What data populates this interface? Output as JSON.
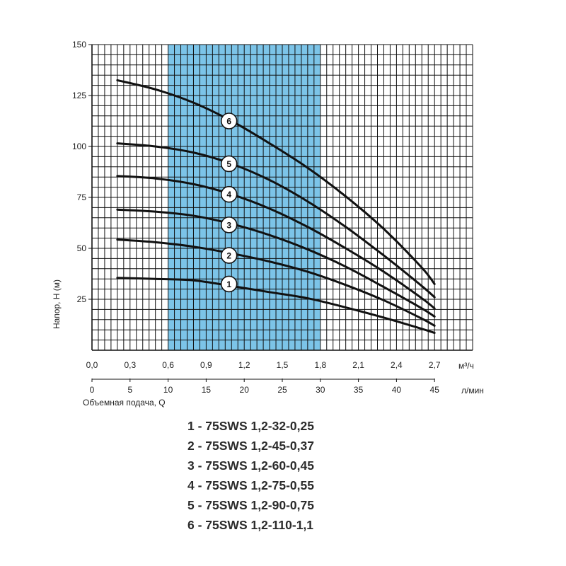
{
  "chart_data": {
    "type": "line",
    "ylabel": "Напор, Н (м)",
    "xlabel": "Объемная подача, Q",
    "y_ticks": [
      "25",
      "50",
      "75",
      "100",
      "125",
      "150"
    ],
    "x_ticks_m3h": [
      "0,0",
      "0,3",
      "0,6",
      "0,9",
      "1,2",
      "1,5",
      "1,8",
      "2,1",
      "2,4",
      "2,7"
    ],
    "x_unit_m3h": "м³/ч",
    "x_ticks_lmin": [
      "0",
      "5",
      "10",
      "15",
      "20",
      "25",
      "30",
      "35",
      "40",
      "45"
    ],
    "x_unit_lmin": "л/мин",
    "xlim": [
      0,
      3.0
    ],
    "ylim": [
      0,
      150
    ],
    "grid": true,
    "highlight_range": [
      0.6,
      1.8
    ],
    "highlight_color": "#7cc4e8",
    "curve_color": "#111111",
    "series": [
      {
        "name": "1",
        "x": [
          0.2,
          0.5,
          0.8,
          1.1,
          1.4,
          1.7,
          2.0,
          2.3,
          2.6,
          2.7
        ],
        "y": [
          35.5,
          35.0,
          34.3,
          31.5,
          28.5,
          25.5,
          21.0,
          16.0,
          10.5,
          8.5
        ]
      },
      {
        "name": "2",
        "x": [
          0.2,
          0.5,
          0.8,
          1.1,
          1.4,
          1.7,
          2.0,
          2.3,
          2.6,
          2.7
        ],
        "y": [
          54.3,
          53.0,
          50.8,
          47.5,
          43.5,
          38.5,
          32.0,
          24.5,
          15.5,
          12.0
        ]
      },
      {
        "name": "3",
        "x": [
          0.2,
          0.5,
          0.8,
          1.1,
          1.4,
          1.7,
          2.0,
          2.3,
          2.6,
          2.7
        ],
        "y": [
          69.0,
          68.0,
          66.0,
          62.0,
          56.5,
          49.5,
          41.0,
          31.0,
          20.5,
          16.5
        ]
      },
      {
        "name": "4",
        "x": [
          0.2,
          0.5,
          0.8,
          1.1,
          1.4,
          1.7,
          2.0,
          2.3,
          2.6,
          2.7
        ],
        "y": [
          85.5,
          84.3,
          81.5,
          76.5,
          69.5,
          60.5,
          50.0,
          38.5,
          25.5,
          20.5
        ]
      },
      {
        "name": "5",
        "x": [
          0.2,
          0.5,
          0.8,
          1.1,
          1.4,
          1.7,
          2.0,
          2.3,
          2.6,
          2.7
        ],
        "y": [
          101.5,
          100.0,
          97.0,
          91.5,
          83.5,
          73.0,
          60.5,
          46.5,
          31.5,
          26.0
        ]
      },
      {
        "name": "6",
        "x": [
          0.2,
          0.5,
          0.8,
          1.1,
          1.4,
          1.7,
          2.0,
          2.3,
          2.6,
          2.7
        ],
        "y": [
          132.5,
          128.0,
          121.5,
          112.5,
          101.5,
          89.5,
          75.5,
          59.5,
          40.5,
          32.5
        ]
      }
    ],
    "label_positions": [
      {
        "id": "1",
        "x": 1.08,
        "y": 32.5
      },
      {
        "id": "2",
        "x": 1.08,
        "y": 46.5
      },
      {
        "id": "3",
        "x": 1.08,
        "y": 61.5
      },
      {
        "id": "4",
        "x": 1.08,
        "y": 76.5
      },
      {
        "id": "5",
        "x": 1.08,
        "y": 91.5
      },
      {
        "id": "6",
        "x": 1.08,
        "y": 112.5
      }
    ]
  },
  "legend": [
    "1 - 75SWS 1,2-32-0,25",
    "2 - 75SWS 1,2-45-0,37",
    "3 - 75SWS 1,2-60-0,45",
    "4 - 75SWS 1,2-75-0,55",
    "5 - 75SWS 1,2-90-0,75",
    "6 - 75SWS 1,2-110-1,1"
  ]
}
